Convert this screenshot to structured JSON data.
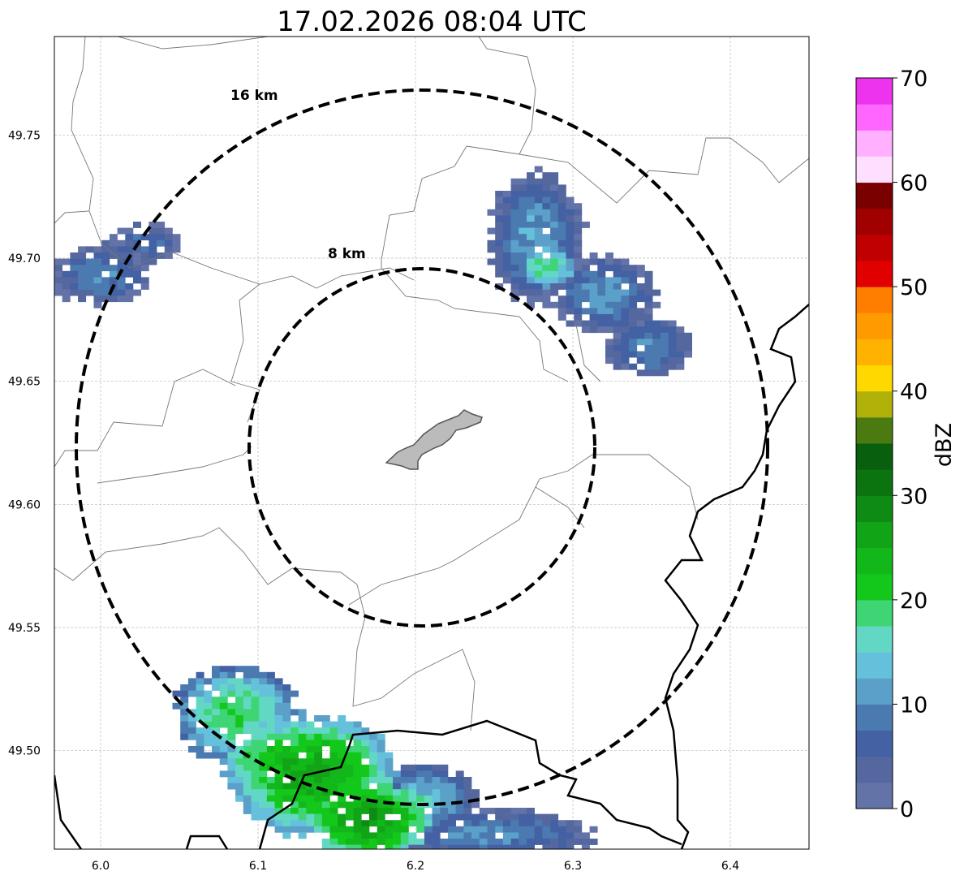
{
  "title": "17.02.2026 08:04 UTC",
  "map": {
    "lon_range": [
      5.9706,
      6.45
    ],
    "lat_range": [
      49.46,
      49.79
    ],
    "x_ticks": [
      {
        "value": 6.0,
        "label": "6.0"
      },
      {
        "value": 6.1,
        "label": "6.1"
      },
      {
        "value": 6.2,
        "label": "6.2"
      },
      {
        "value": 6.3,
        "label": "6.3"
      },
      {
        "value": 6.4,
        "label": "6.4"
      }
    ],
    "y_ticks": [
      {
        "value": 49.75,
        "label": "49.75"
      },
      {
        "value": 49.7,
        "label": "49.70"
      },
      {
        "value": 49.65,
        "label": "49.65"
      },
      {
        "value": 49.6,
        "label": "49.60"
      },
      {
        "value": 49.55,
        "label": "49.55"
      },
      {
        "value": 49.5,
        "label": "49.50"
      }
    ],
    "range_rings": [
      {
        "label": "8 km",
        "km": 8
      },
      {
        "label": "16 km",
        "km": 16
      }
    ],
    "radar_center": [
      6.204,
      49.623
    ]
  },
  "colorbar": {
    "label": "dBZ",
    "min": 0,
    "max": 70,
    "step": 2.5,
    "ticks": [
      "0",
      "10",
      "20",
      "30",
      "40",
      "50",
      "60",
      "70"
    ],
    "colors": [
      "#6373a8",
      "#54679f",
      "#4361a3",
      "#4a7ab0",
      "#5aa0c8",
      "#65c0dc",
      "#62d8c4",
      "#3ed575",
      "#13c81a",
      "#12b71a",
      "#11a417",
      "#0e8b14",
      "#0b7410",
      "#08600e",
      "#4a7a10",
      "#b0b20a",
      "#ffd800",
      "#ffb300",
      "#ff9a00",
      "#ff7e00",
      "#e00000",
      "#c00000",
      "#a00000",
      "#7a0000",
      "#ffdfff",
      "#ffb0ff",
      "#ff66ff",
      "#ee33ee"
    ]
  }
}
